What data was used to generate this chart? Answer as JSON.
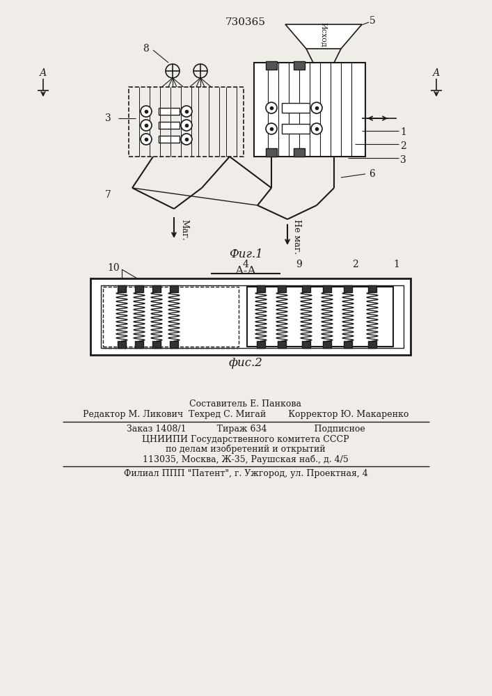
{
  "patent_number": "730365",
  "fig1_caption": "Фиг.1",
  "fig2_caption": "фис.2",
  "section_label": "А-А",
  "bg_color": "#f0ede8",
  "line_color": "#1a1a1a",
  "text_color": "#1a1a1a",
  "footer_lines": [
    "Составитель Е. Панкова",
    "Редактор М. Ликович  Техред С. Мигай        Корректор Ю. Макаренко",
    "Заказ 1408/1           Тираж 634                 Подписное",
    "ЦНИИПИ Государственного комитета СССР",
    "по делам изобретений и открытий",
    "113035, Москва, Ж-35, Раушская наб., д. 4/5",
    "Филиал ППП \"Патент\", г. Ужгород, ул. Проектная, 4"
  ]
}
